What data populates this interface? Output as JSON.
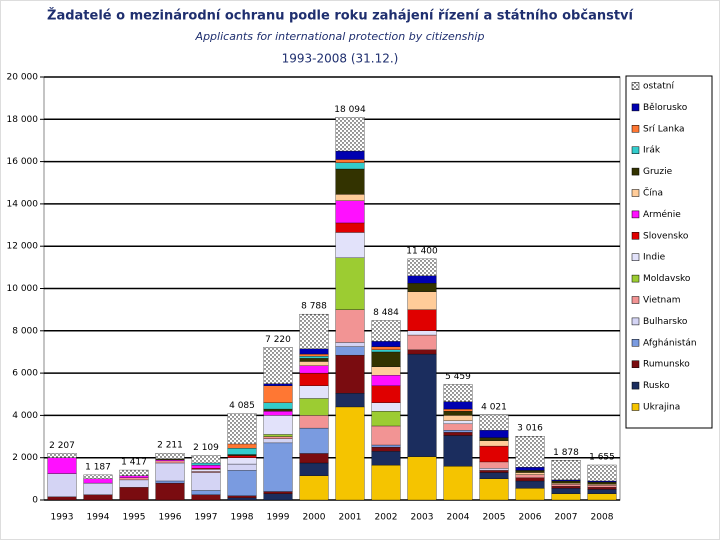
{
  "chart_data": {
    "type": "stacked_bar",
    "title": "Žadatelé o mezinárodní ochranu podle roku zahájení řízení a státního občanství",
    "subtitle": "Applicants for international protection by citizenship",
    "period": "1993-2008 (31.12.)",
    "categories": [
      "1993",
      "1994",
      "1995",
      "1996",
      "1997",
      "1998",
      "1999",
      "2000",
      "2001",
      "2002",
      "2003",
      "2004",
      "2005",
      "2006",
      "2007",
      "2008"
    ],
    "series": [
      {
        "name": "Ukrajina",
        "color": "#f5c400",
        "values": [
          0,
          0,
          0,
          0,
          0,
          0,
          0,
          1150,
          4400,
          1650,
          2050,
          1600,
          1000,
          550,
          300,
          300
        ]
      },
      {
        "name": "Rusko",
        "color": "#1b2d5e",
        "values": [
          0,
          0,
          0,
          0,
          0,
          100,
          300,
          600,
          650,
          650,
          4850,
          1450,
          300,
          350,
          250,
          200
        ]
      },
      {
        "name": "Rumunsko",
        "color": "#7a0c10",
        "values": [
          150,
          250,
          600,
          800,
          250,
          100,
          100,
          450,
          1800,
          200,
          200,
          150,
          100,
          150,
          100,
          100
        ]
      },
      {
        "name": "Afghánistán",
        "color": "#7a9be0",
        "values": [
          0,
          0,
          0,
          100,
          200,
          1200,
          2300,
          1200,
          400,
          100,
          0,
          100,
          0,
          0,
          0,
          0
        ]
      },
      {
        "name": "Bulharsko",
        "color": "#d4d4f4",
        "values": [
          1100,
          550,
          350,
          850,
          850,
          300,
          200,
          0,
          200,
          0,
          0,
          0,
          100,
          0,
          0,
          0
        ]
      },
      {
        "name": "Vietnam",
        "color": "#f29494",
        "values": [
          0,
          0,
          100,
          100,
          50,
          0,
          100,
          600,
          1550,
          900,
          700,
          300,
          300,
          150,
          100,
          100
        ]
      },
      {
        "name": "Moldavsko",
        "color": "#9ccc32",
        "values": [
          0,
          0,
          0,
          0,
          0,
          0,
          100,
          800,
          2450,
          700,
          0,
          0,
          0,
          0,
          0,
          0
        ]
      },
      {
        "name": "Indie",
        "color": "#e2e2fa",
        "values": [
          0,
          0,
          0,
          0,
          100,
          300,
          900,
          600,
          1200,
          400,
          200,
          150,
          0,
          0,
          0,
          0
        ]
      },
      {
        "name": "Slovensko",
        "color": "#e00000",
        "values": [
          0,
          0,
          0,
          0,
          50,
          100,
          0,
          600,
          450,
          800,
          1000,
          0,
          750,
          0,
          0,
          0
        ]
      },
      {
        "name": "Arménie",
        "color": "#ff10ff",
        "values": [
          750,
          200,
          100,
          50,
          150,
          0,
          200,
          350,
          1050,
          500,
          0,
          0,
          0,
          0,
          0,
          0
        ]
      },
      {
        "name": "Čína",
        "color": "#ffcc99",
        "values": [
          0,
          0,
          0,
          0,
          0,
          0,
          0,
          200,
          300,
          400,
          850,
          250,
          250,
          100,
          50,
          50
        ]
      },
      {
        "name": "Gruzie",
        "color": "#333300",
        "values": [
          0,
          0,
          0,
          50,
          0,
          50,
          100,
          150,
          1200,
          700,
          400,
          200,
          150,
          100,
          100,
          100
        ]
      },
      {
        "name": "Irák",
        "color": "#33cccc",
        "values": [
          0,
          0,
          0,
          0,
          100,
          300,
          300,
          100,
          300,
          100,
          0,
          0,
          0,
          0,
          0,
          0
        ]
      },
      {
        "name": "Srí Lanka",
        "color": "#ff7733",
        "values": [
          0,
          0,
          0,
          0,
          0,
          200,
          800,
          100,
          150,
          150,
          0,
          100,
          0,
          0,
          0,
          0
        ]
      },
      {
        "name": "Bělorusko",
        "color": "#0000b0",
        "values": [
          0,
          0,
          0,
          0,
          0,
          0,
          100,
          250,
          400,
          250,
          350,
          350,
          350,
          150,
          50,
          50
        ]
      },
      {
        "name": "ostatní",
        "color": "#ffffff",
        "pattern": "dots",
        "values": [
          207,
          187,
          267,
          261,
          359,
          1435,
          1720,
          1638,
          1594,
          984,
          800,
          809,
          721,
          1466,
          928,
          755
        ]
      }
    ],
    "totals": [
      2207,
      1187,
      1417,
      2211,
      2109,
      4085,
      7220,
      8788,
      18094,
      8484,
      11400,
      5459,
      4021,
      3016,
      1878,
      1655
    ],
    "total_labels": [
      "2 207",
      "1 187",
      "1 417",
      "2 211",
      "2 109",
      "4 085",
      "7 220",
      "8 788",
      "18 094",
      "8 484",
      "11 400",
      "5 459",
      "4 021",
      "3 016",
      "1 878",
      "1 655"
    ],
    "ylim": [
      0,
      20000
    ],
    "yticks": [
      0,
      {
        "value": 2000,
        "label": "2 000"
      },
      {
        "value": 4000,
        "label": "4 000"
      },
      {
        "value": 6000,
        "label": "6 000"
      },
      {
        "value": 8000,
        "label": "8 000"
      },
      {
        "value": 10000,
        "label": "10 000"
      },
      {
        "value": 12000,
        "label": "12 000"
      },
      {
        "value": 14000,
        "label": "14 000"
      },
      {
        "value": 16000,
        "label": "16 000"
      },
      {
        "value": 18000,
        "label": "18 000"
      },
      {
        "value": 20000,
        "label": "20 000"
      }
    ],
    "grid": true,
    "legend": "right"
  }
}
